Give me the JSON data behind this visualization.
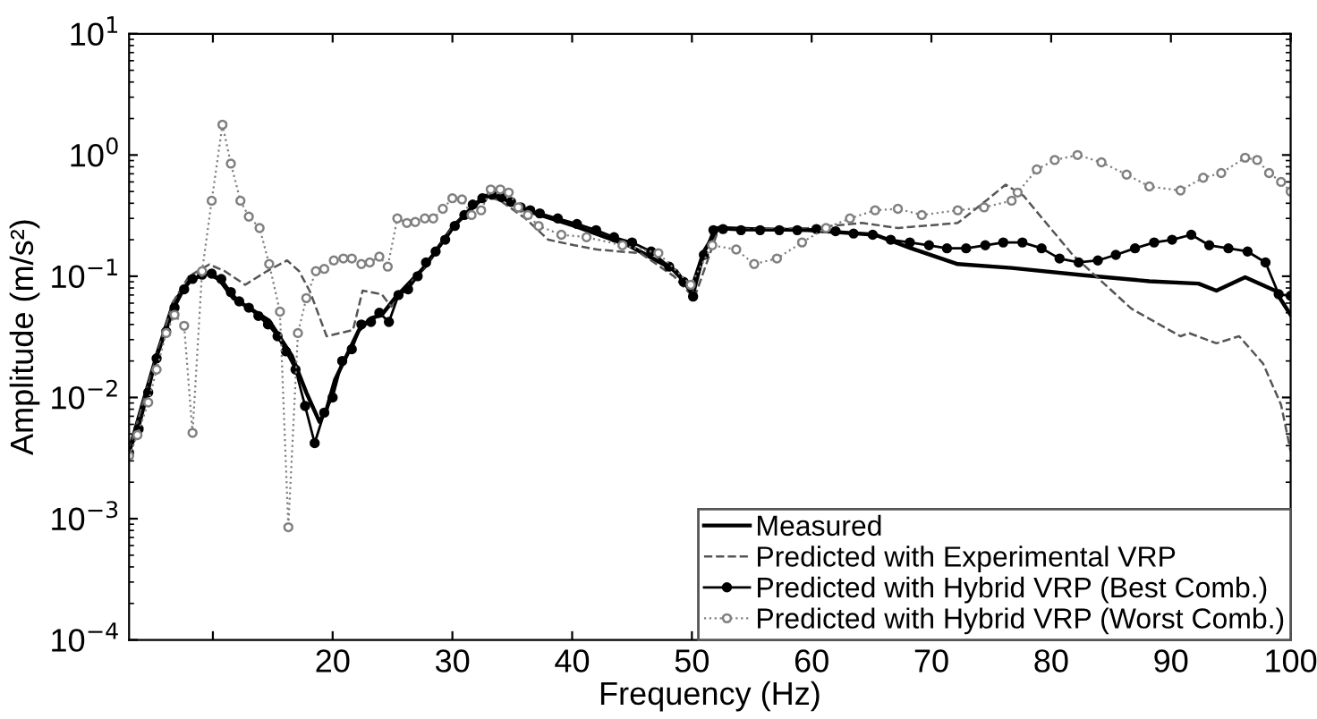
{
  "chart_data": {
    "type": "line",
    "xlabel": "Frequency (Hz)",
    "ylabel": "Amplitude (m/s²)",
    "log": "y",
    "xlim": [
      3,
      100
    ],
    "xticks": [
      {
        "value": 10,
        "label": null
      },
      20,
      30,
      40,
      50,
      60,
      70,
      80,
      90,
      100
    ],
    "ylim": [
      0.0001,
      10
    ],
    "yticks": [
      {
        "value": 0.0001,
        "label": "10$^{−4}$"
      },
      {
        "value": 0.001,
        "label": "10$^{−3}$"
      },
      {
        "value": 0.01,
        "label": "10$^{−2}$"
      },
      {
        "value": 0.1,
        "label": "10$^{−1}$"
      },
      {
        "value": 1,
        "label": "10$^{0}$"
      },
      {
        "value": 10,
        "label": "10$^{1}$"
      }
    ],
    "grid": false,
    "legend": "bottom right",
    "series": [
      {
        "name": "Measured",
        "color": "#000000",
        "marker": "none",
        "line_style": "solid",
        "x": [
          3,
          4,
          5.35,
          6.7,
          8,
          9.4,
          10.5,
          11.7,
          13,
          14.7,
          16.6,
          17.8,
          18.9,
          19.5,
          20.2,
          22.2,
          23.2,
          24.1,
          25.2,
          27.7,
          30.1,
          32.7,
          34,
          36.1,
          40.2,
          44.7,
          48.7,
          49.9,
          51,
          52.2,
          55,
          59.7,
          65.3,
          68.3,
          72.2,
          76.7,
          82.7,
          88.2,
          92.3,
          93.8,
          96.2,
          98.7,
          100
        ],
        "values": [
          0.0036,
          0.008,
          0.023,
          0.06,
          0.09,
          0.107,
          0.095,
          0.066,
          0.055,
          0.043,
          0.022,
          0.011,
          0.0063,
          0.008,
          0.014,
          0.036,
          0.045,
          0.048,
          0.066,
          0.12,
          0.26,
          0.46,
          0.45,
          0.35,
          0.26,
          0.18,
          0.11,
          0.075,
          0.16,
          0.25,
          0.245,
          0.24,
          0.22,
          0.17,
          0.126,
          0.117,
          0.102,
          0.091,
          0.087,
          0.076,
          0.098,
          0.076,
          0.048
        ]
      },
      {
        "name": "Predicted with Experimental VRP",
        "color": "#555555",
        "marker": "none",
        "line_style": "dashed",
        "x": [
          3,
          4,
          5.35,
          6.7,
          8,
          9.7,
          11,
          12.7,
          14.5,
          16.2,
          17.2,
          18.1,
          19.5,
          21.7,
          22.5,
          24.1,
          24.9,
          25.5,
          27.7,
          30.1,
          32.7,
          34,
          36.1,
          38,
          40.2,
          42.1,
          45.7,
          48.5,
          50.2,
          52.2,
          59.7,
          64.2,
          67.2,
          72.2,
          74.7,
          76.2,
          77.7,
          81.8,
          86.7,
          90.8,
          91.5,
          93.8,
          95.7,
          97.7,
          99.2,
          100
        ],
        "values": [
          0.0036,
          0.008,
          0.023,
          0.062,
          0.1,
          0.125,
          0.11,
          0.085,
          0.11,
          0.135,
          0.11,
          0.075,
          0.032,
          0.036,
          0.076,
          0.071,
          0.056,
          0.068,
          0.12,
          0.26,
          0.46,
          0.42,
          0.3,
          0.2,
          0.18,
          0.166,
          0.155,
          0.1,
          0.066,
          0.24,
          0.25,
          0.275,
          0.25,
          0.275,
          0.43,
          0.57,
          0.46,
          0.15,
          0.054,
          0.032,
          0.034,
          0.028,
          0.032,
          0.019,
          0.0087,
          0.0036
        ]
      },
      {
        "name": "Predicted with Hybrid VRP (Best Comb.)",
        "color": "#000000",
        "marker": "circle",
        "line_style": "solid",
        "x": [
          3,
          3.8,
          4.6,
          5.3,
          6.1,
          6.8,
          7.6,
          8.3,
          9.1,
          9.9,
          10.7,
          11.5,
          12.2,
          13,
          13.8,
          14.6,
          15.4,
          16.1,
          16.9,
          17.7,
          18.5,
          19.3,
          20,
          20.8,
          21.6,
          22.4,
          23.2,
          23.9,
          24.7,
          25.5,
          26.3,
          27.1,
          27.8,
          28.6,
          29.4,
          30.2,
          31,
          31.7,
          32.5,
          33.3,
          34.1,
          34.9,
          35.7,
          36.5,
          37.3,
          38.8,
          40.4,
          42,
          43.5,
          45,
          46.6,
          48.1,
          49.3,
          50.1,
          51,
          51.8,
          52.6,
          54.1,
          55.7,
          57.3,
          58.8,
          60.4,
          62,
          63.5,
          65.1,
          66.6,
          68.2,
          69.8,
          71.3,
          72.9,
          74.5,
          76,
          77.6,
          79.2,
          80.7,
          82.3,
          83.9,
          85.4,
          87,
          88.6,
          90.1,
          91.7,
          93.2,
          94.8,
          96.4,
          97.9,
          99,
          100
        ],
        "values": [
          0.0035,
          0.0055,
          0.011,
          0.021,
          0.035,
          0.055,
          0.078,
          0.095,
          0.103,
          0.105,
          0.095,
          0.074,
          0.062,
          0.055,
          0.047,
          0.04,
          0.032,
          0.024,
          0.017,
          0.0085,
          0.0042,
          0.0075,
          0.01,
          0.02,
          0.025,
          0.04,
          0.042,
          0.05,
          0.042,
          0.07,
          0.078,
          0.1,
          0.13,
          0.16,
          0.2,
          0.26,
          0.32,
          0.39,
          0.44,
          0.47,
          0.45,
          0.41,
          0.37,
          0.35,
          0.33,
          0.3,
          0.27,
          0.24,
          0.21,
          0.19,
          0.16,
          0.12,
          0.09,
          0.068,
          0.15,
          0.24,
          0.245,
          0.24,
          0.24,
          0.24,
          0.24,
          0.245,
          0.235,
          0.225,
          0.22,
          0.2,
          0.19,
          0.18,
          0.17,
          0.17,
          0.18,
          0.19,
          0.19,
          0.17,
          0.14,
          0.13,
          0.135,
          0.15,
          0.17,
          0.19,
          0.2,
          0.22,
          0.18,
          0.17,
          0.16,
          0.13,
          0.071,
          0.069
        ]
      },
      {
        "name": "Predicted with Hybrid VRP (Worst Comb.)",
        "color": "#808080",
        "marker": "circle",
        "line_style": "dotted",
        "x": [
          3,
          3.7,
          4.6,
          5.3,
          6.1,
          6.8,
          7.6,
          8.3,
          9.1,
          9.9,
          10.8,
          11.5,
          12.3,
          13,
          13.9,
          14.7,
          15.6,
          16.3,
          17.1,
          17.8,
          18.6,
          19.3,
          20.1,
          20.9,
          21.6,
          22.4,
          23.1,
          23.9,
          24.6,
          25.4,
          26.2,
          26.9,
          27.7,
          28.4,
          29.2,
          30,
          30.8,
          31.6,
          32.4,
          33.2,
          34,
          34.7,
          35.5,
          36.3,
          37.2,
          39.1,
          41.2,
          44.2,
          47.2,
          49.9,
          51.7,
          53.7,
          55.2,
          57.1,
          59.2,
          61.2,
          63.2,
          65.3,
          67.2,
          69.2,
          72.2,
          74.4,
          76.7,
          77.2,
          78.8,
          80.3,
          82.2,
          84.2,
          86.3,
          88.2,
          90.8,
          92.7,
          94.2,
          96.2,
          97.2,
          98.2,
          99.2,
          100
        ],
        "values": [
          0.0033,
          0.0049,
          0.0091,
          0.017,
          0.034,
          0.048,
          0.039,
          0.0051,
          0.11,
          0.42,
          1.78,
          0.85,
          0.42,
          0.31,
          0.25,
          0.126,
          0.051,
          0.00085,
          0.034,
          0.066,
          0.11,
          0.115,
          0.135,
          0.14,
          0.14,
          0.126,
          0.13,
          0.145,
          0.12,
          0.3,
          0.275,
          0.28,
          0.3,
          0.3,
          0.36,
          0.44,
          0.43,
          0.32,
          0.35,
          0.52,
          0.52,
          0.49,
          0.37,
          0.32,
          0.26,
          0.22,
          0.21,
          0.18,
          0.155,
          0.085,
          0.18,
          0.166,
          0.126,
          0.14,
          0.19,
          0.25,
          0.3,
          0.35,
          0.36,
          0.32,
          0.35,
          0.37,
          0.42,
          0.49,
          0.76,
          0.91,
          1.0,
          0.87,
          0.69,
          0.55,
          0.51,
          0.65,
          0.71,
          0.95,
          0.91,
          0.71,
          0.6,
          0.5
        ]
      }
    ]
  }
}
